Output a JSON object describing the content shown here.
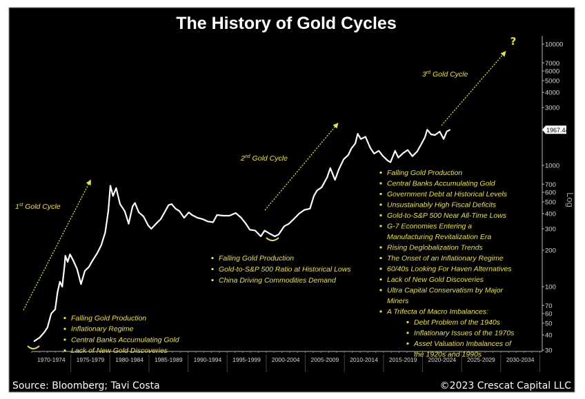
{
  "chart_data": {
    "type": "line",
    "title": "The History of Gold Cycles",
    "y_scale": "log",
    "y_axis_label": "Log",
    "ylim": [
      25,
      12000
    ],
    "y_ticks": [
      30,
      40,
      50,
      60,
      70,
      100,
      200,
      300,
      400,
      500,
      600,
      700,
      1000,
      3000,
      4000,
      5000,
      6000,
      7000,
      10000
    ],
    "x_categories": [
      "1970-1974",
      "1975-1979",
      "1980-1984",
      "1985-1989",
      "1990-1994",
      "1995-1999",
      "2000-2004",
      "2005-2009",
      "2010-2014",
      "2015-2019",
      "2020-2024",
      "2025-2029",
      "2030-2034"
    ],
    "xlim": [
      1970,
      2035
    ],
    "last_value_label": "1967.44",
    "series": [
      {
        "color": "#ffffff",
        "points": [
          [
            1970.3,
            35.5
          ],
          [
            1971,
            38
          ],
          [
            1971.6,
            42
          ],
          [
            1972,
            46
          ],
          [
            1972.5,
            60
          ],
          [
            1973,
            65
          ],
          [
            1973.3,
            90
          ],
          [
            1973.6,
            110
          ],
          [
            1973.9,
            100
          ],
          [
            1974.2,
            150
          ],
          [
            1974.3,
            180
          ],
          [
            1974.6,
            160
          ],
          [
            1974.9,
            185
          ],
          [
            1975.3,
            165
          ],
          [
            1975.8,
            140
          ],
          [
            1976.3,
            105
          ],
          [
            1976.8,
            135
          ],
          [
            1977.3,
            145
          ],
          [
            1977.8,
            165
          ],
          [
            1978.4,
            190
          ],
          [
            1978.9,
            220
          ],
          [
            1979.4,
            280
          ],
          [
            1979.8,
            420
          ],
          [
            1980.06,
            680
          ],
          [
            1980.4,
            560
          ],
          [
            1980.8,
            650
          ],
          [
            1981.3,
            480
          ],
          [
            1981.9,
            420
          ],
          [
            1982.4,
            330
          ],
          [
            1982.9,
            460
          ],
          [
            1983.2,
            490
          ],
          [
            1983.7,
            410
          ],
          [
            1984.3,
            380
          ],
          [
            1984.9,
            320
          ],
          [
            1985.3,
            300
          ],
          [
            1985.9,
            330
          ],
          [
            1986.5,
            360
          ],
          [
            1986.9,
            400
          ],
          [
            1987.5,
            470
          ],
          [
            1987.9,
            480
          ],
          [
            1988.4,
            440
          ],
          [
            1988.9,
            420
          ],
          [
            1989.5,
            370
          ],
          [
            1990.1,
            410
          ],
          [
            1990.5,
            390
          ],
          [
            1991.2,
            370
          ],
          [
            1991.9,
            360
          ],
          [
            1992.5,
            345
          ],
          [
            1993.2,
            340
          ],
          [
            1993.7,
            390
          ],
          [
            1994.5,
            385
          ],
          [
            1995.3,
            385
          ],
          [
            1996.1,
            405
          ],
          [
            1996.8,
            370
          ],
          [
            1997.4,
            330
          ],
          [
            1997.9,
            295
          ],
          [
            1998.6,
            290
          ],
          [
            1999.3,
            260
          ],
          [
            1999.8,
            290
          ],
          [
            2000.4,
            275
          ],
          [
            2001.1,
            260
          ],
          [
            2001.6,
            270
          ],
          [
            2002.3,
            315
          ],
          [
            2002.9,
            330
          ],
          [
            2003.5,
            360
          ],
          [
            2004.2,
            400
          ],
          [
            2004.9,
            430
          ],
          [
            2005.6,
            440
          ],
          [
            2006.1,
            560
          ],
          [
            2006.5,
            620
          ],
          [
            2007.1,
            660
          ],
          [
            2007.8,
            800
          ],
          [
            2008.2,
            950
          ],
          [
            2008.8,
            760
          ],
          [
            2009.3,
            930
          ],
          [
            2009.9,
            1120
          ],
          [
            2010.5,
            1220
          ],
          [
            2010.9,
            1380
          ],
          [
            2011.4,
            1520
          ],
          [
            2011.7,
            1820
          ],
          [
            2012.1,
            1650
          ],
          [
            2012.7,
            1720
          ],
          [
            2013.3,
            1400
          ],
          [
            2013.8,
            1250
          ],
          [
            2014.4,
            1320
          ],
          [
            2014.9,
            1200
          ],
          [
            2015.5,
            1100
          ],
          [
            2015.9,
            1060
          ],
          [
            2016.5,
            1320
          ],
          [
            2016.9,
            1160
          ],
          [
            2017.5,
            1260
          ],
          [
            2018.1,
            1340
          ],
          [
            2018.7,
            1190
          ],
          [
            2019.3,
            1300
          ],
          [
            2019.8,
            1480
          ],
          [
            2020.3,
            1700
          ],
          [
            2020.6,
            1970
          ],
          [
            2021.1,
            1800
          ],
          [
            2021.6,
            1780
          ],
          [
            2022.2,
            1900
          ],
          [
            2022.7,
            1650
          ],
          [
            2023.1,
            1900
          ],
          [
            2023.5,
            1967.44
          ]
        ]
      }
    ]
  },
  "annotations": {
    "cycle1": {
      "num": "1",
      "sup": "st",
      "label": " Gold Cycle"
    },
    "cycle2": {
      "num": "2",
      "sup": "nd",
      "label": " Gold Cycle"
    },
    "cycle3": {
      "num": "3",
      "sup": "rd",
      "label": " Gold Cycle"
    },
    "question_mark": "?",
    "list1": [
      "Falling Gold Production",
      "Inflationary Regime",
      "Central Banks Accumulating Gold",
      "Lack of New Gold Discoveries"
    ],
    "list2": [
      "Falling Gold Production",
      "Gold-to-S&P 500 Ratio at Historical Lows",
      "China Driving Commodities Demand"
    ],
    "list3": [
      "Falling Gold Production",
      "Central Banks Accumulating Gold",
      "Government Debt at Historical Levels",
      "Unsustainably High Fiscal Deficits",
      "Gold-to-S&P 500 Near All-Time Lows",
      "G-7 Economies Entering a",
      "Manufacturing Revitalization Era",
      "Rising Deglobalization Trends",
      "The Onset of an Inflationary Regime",
      "60/40s Looking For Haven Alternatives",
      "Lack of New Gold Discoveries",
      "Ultra Capital Conservatism by Major",
      "Miners",
      "A Trifecta of Macro Imbalances:"
    ],
    "list3_sub": [
      "Debt Problem of the 1940s",
      "Inflationary Issues of the 1970s",
      "Asset Valuation Imbalances of",
      "the 1920s and 1990s"
    ]
  },
  "footer": {
    "source": "Source: Bloomberg; Tavi Costa",
    "copyright": "©2023 Crescat Capital LLC"
  },
  "colors": {
    "background": "#000000",
    "line": "#ffffff",
    "annotation": "#e8e05a",
    "axis": "#bbbbbb"
  }
}
